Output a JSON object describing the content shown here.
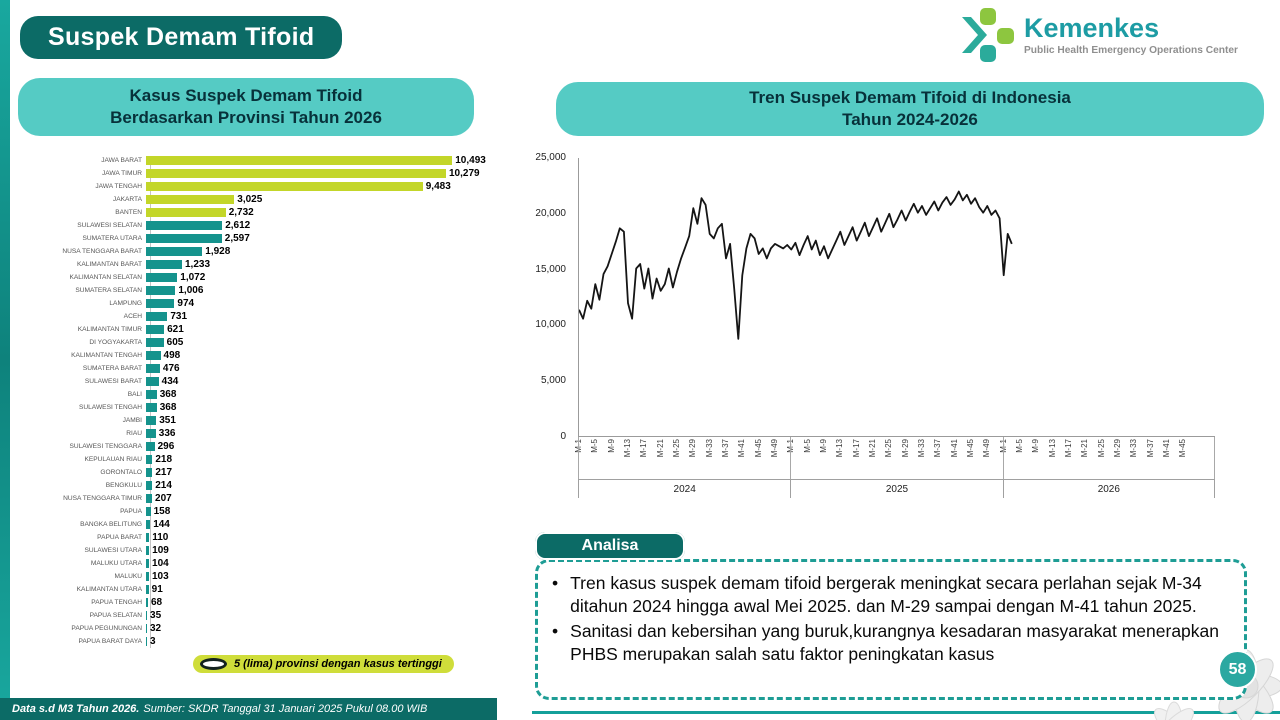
{
  "page": {
    "title_badge": "Suspek Demam Tifoid",
    "page_number": "58",
    "footer": {
      "bold": "Data s.d M3 Tahun 2026.",
      "rest": "Sumber: SKDR Tanggal 31 Januari 2025 Pukul 08.00 WIB"
    }
  },
  "logo": {
    "name": "Kemenkes",
    "subtitle": "Public Health Emergency Operations Center"
  },
  "left_panel": {
    "header_line1": "Kasus Suspek Demam Tifoid",
    "header_line2": "Berdasarkan Provinsi Tahun 2026",
    "legend": "5 (lima) provinsi dengan kasus tertinggi"
  },
  "right_panel": {
    "header_line1": "Tren Suspek Demam Tifoid di Indonesia",
    "header_line2": "Tahun 2024-2026",
    "analisa_label": "Analisa",
    "analysis_bullets": [
      "Tren kasus suspek demam tifoid  bergerak meningkat secara perlahan sejak M-34 ditahun 2024 hingga awal Mei 2025. dan M-29 sampai dengan M-41 tahun 2025.",
      "Sanitasi dan kebersihan yang buruk,kurangnya kesadaran masyarakat menerapkan PHBS merupakan salah satu faktor peningkatan kasus"
    ]
  },
  "colors": {
    "dark_teal": "#0c6b66",
    "header_teal": "#55cbc4",
    "bar_teal": "#15938d",
    "lime": "#c3d629",
    "logo_teal": "#1d9ca4",
    "logo_green": "#8dc63f",
    "page_circle": "#2ba8a1",
    "line": "#151515"
  },
  "chart_data": [
    {
      "type": "bar",
      "orientation": "horizontal",
      "title": "Kasus Suspek Demam Tifoid Berdasarkan Provinsi Tahun 2026",
      "categories": [
        "JAWA BARAT",
        "JAWA TIMUR",
        "JAWA TENGAH",
        "JAKARTA",
        "BANTEN",
        "SULAWESI SELATAN",
        "SUMATERA UTARA",
        "NUSA TENGGARA BARAT",
        "KALIMANTAN BARAT",
        "KALIMANTAN SELATAN",
        "SUMATERA SELATAN",
        "LAMPUNG",
        "ACEH",
        "KALIMANTAN TIMUR",
        "DI YOGYAKARTA",
        "KALIMANTAN TENGAH",
        "SUMATERA BARAT",
        "SULAWESI BARAT",
        "BALI",
        "SULAWESI TENGAH",
        "JAMBI",
        "RIAU",
        "SULAWESI TENGGARA",
        "KEPULAUAN RIAU",
        "GORONTALO",
        "BENGKULU",
        "NUSA TENGGARA TIMUR",
        "PAPUA",
        "BANGKA BELITUNG",
        "PAPUA BARAT",
        "SULAWESI UTARA",
        "MALUKU UTARA",
        "MALUKU",
        "KALIMANTAN UTARA",
        "PAPUA TENGAH",
        "PAPUA SELATAN",
        "PAPUA PEGUNUNGAN",
        "PAPUA BARAT DAYA"
      ],
      "values": [
        10493,
        10279,
        9483,
        3025,
        2732,
        2612,
        2597,
        1928,
        1233,
        1072,
        1006,
        974,
        731,
        621,
        605,
        498,
        476,
        434,
        368,
        368,
        351,
        336,
        296,
        218,
        217,
        214,
        207,
        158,
        144,
        110,
        109,
        104,
        103,
        91,
        68,
        35,
        32,
        3
      ],
      "highlight_top_n": 5,
      "highlight_color": "#c3d629",
      "bar_color": "#15938d",
      "note": "5 (lima) provinsi dengan kasus tertinggi"
    },
    {
      "type": "line",
      "title": "Tren Suspek Demam Tifoid di Indonesia Tahun 2024-2026",
      "ylim": [
        0,
        25000
      ],
      "yticks": [
        0,
        5000,
        10000,
        15000,
        20000,
        25000
      ],
      "line_color": "#151515",
      "x_unit": "epi-week",
      "years": [
        {
          "year": "2024",
          "weeks": 52,
          "tick_labels": [
            "M-1",
            "M-5",
            "M-9",
            "M-13",
            "M-17",
            "M-21",
            "M-25",
            "M-29",
            "M-33",
            "M-37",
            "M-41",
            "M-45",
            "M-49"
          ]
        },
        {
          "year": "2025",
          "weeks": 52,
          "tick_labels": [
            "M-1",
            "M-5",
            "M-9",
            "M-13",
            "M-17",
            "M-21",
            "M-25",
            "M-29",
            "M-33",
            "M-37",
            "M-41",
            "M-45",
            "M-49"
          ]
        },
        {
          "year": "2026",
          "weeks": 52,
          "tick_labels": [
            "M-1",
            "M-5",
            "M-9",
            "M-13",
            "M-17",
            "M-21",
            "M-25",
            "M-29",
            "M-33",
            "M-37",
            "M-41",
            "M-45"
          ]
        }
      ],
      "values": [
        11400,
        10600,
        12200,
        11500,
        13700,
        12300,
        14600,
        15300,
        16400,
        17500,
        18700,
        18400,
        12000,
        10600,
        15100,
        15500,
        13300,
        15100,
        12400,
        14200,
        13100,
        13700,
        15100,
        13400,
        14800,
        16000,
        17000,
        18000,
        20500,
        19100,
        21400,
        20800,
        18200,
        17800,
        18700,
        19100,
        16000,
        17300,
        13300,
        8800,
        14500,
        16900,
        18200,
        17800,
        16400,
        16900,
        16000,
        16900,
        17300,
        17100,
        16900,
        17200,
        16800,
        17400,
        16300,
        17200,
        18000,
        16800,
        17600,
        16300,
        17100,
        16000,
        16800,
        17600,
        18400,
        17200,
        18000,
        18800,
        17600,
        18400,
        19200,
        18000,
        18800,
        19600,
        18400,
        19200,
        20000,
        18800,
        19500,
        20300,
        19400,
        20200,
        20900,
        20100,
        20700,
        19900,
        20500,
        21100,
        20300,
        21000,
        21500,
        20800,
        21300,
        22000,
        21200,
        21700,
        20900,
        21400,
        20600,
        20100,
        20700,
        19900,
        20300,
        19600,
        14500,
        18200,
        17300
      ]
    }
  ]
}
